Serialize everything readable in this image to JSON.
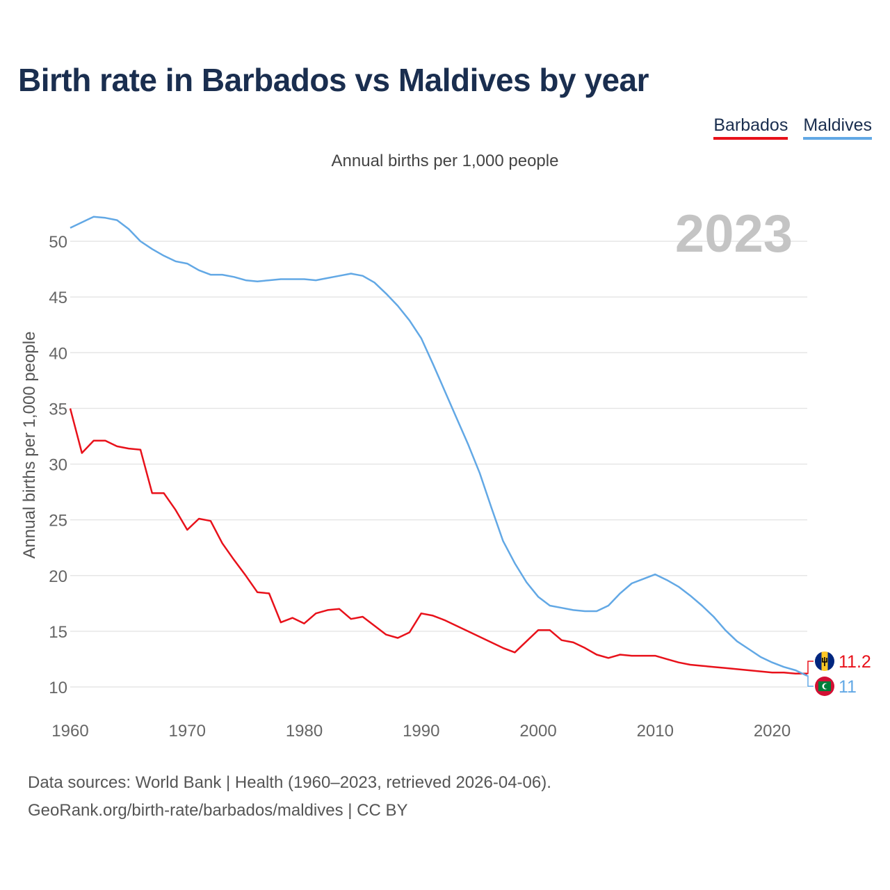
{
  "title": "Birth rate in Barbados vs Maldives by year",
  "legend": [
    {
      "label": "Barbados",
      "color": "#e8111a"
    },
    {
      "label": "Maldives",
      "color": "#62a8e5"
    }
  ],
  "subtitle": "Annual births per 1,000 people",
  "year_label": "2023",
  "source": {
    "line1": "Data sources: World Bank | Health (1960–2023, retrieved 2026-04-06).",
    "line2": "GeoRank.org/birth-rate/barbados/maldives | CC BY"
  },
  "chart_data": {
    "type": "line",
    "title": "Birth rate in Barbados vs Maldives by year",
    "ylabel": "Annual births per 1,000 people",
    "xlabel": "",
    "xlim": [
      1960,
      2023
    ],
    "ylim": [
      10,
      52.5
    ],
    "x_ticks": [
      1960,
      1970,
      1980,
      1990,
      2000,
      2010,
      2020
    ],
    "y_ticks": [
      10,
      15,
      20,
      25,
      30,
      35,
      40,
      45,
      50
    ],
    "grid": true,
    "x": [
      1960,
      1961,
      1962,
      1963,
      1964,
      1965,
      1966,
      1967,
      1968,
      1969,
      1970,
      1971,
      1972,
      1973,
      1974,
      1975,
      1976,
      1977,
      1978,
      1979,
      1980,
      1981,
      1982,
      1983,
      1984,
      1985,
      1986,
      1987,
      1988,
      1989,
      1990,
      1991,
      1992,
      1993,
      1994,
      1995,
      1996,
      1997,
      1998,
      1999,
      2000,
      2001,
      2002,
      2003,
      2004,
      2005,
      2006,
      2007,
      2008,
      2009,
      2010,
      2011,
      2012,
      2013,
      2014,
      2015,
      2016,
      2017,
      2018,
      2019,
      2020,
      2021,
      2022,
      2023
    ],
    "series": [
      {
        "name": "Barbados",
        "color": "#e8111a",
        "end_label": "11.2",
        "values": [
          35.0,
          31.0,
          32.1,
          32.1,
          31.6,
          31.4,
          31.3,
          27.4,
          27.4,
          25.9,
          24.1,
          25.1,
          24.9,
          22.9,
          21.4,
          20.0,
          18.5,
          18.4,
          15.8,
          16.2,
          15.7,
          16.6,
          16.9,
          17.0,
          16.1,
          16.3,
          15.5,
          14.7,
          14.4,
          14.9,
          16.6,
          16.4,
          16.0,
          15.5,
          15.0,
          14.5,
          14.0,
          13.5,
          13.1,
          14.1,
          15.1,
          15.1,
          14.2,
          14.0,
          13.5,
          12.9,
          12.6,
          12.9,
          12.8,
          12.8,
          12.8,
          12.5,
          12.2,
          12.0,
          11.9,
          11.8,
          11.7,
          11.6,
          11.5,
          11.4,
          11.3,
          11.3,
          11.2,
          11.2
        ]
      },
      {
        "name": "Maldives",
        "color": "#62a8e5",
        "end_label": "11",
        "values": [
          51.2,
          51.7,
          52.2,
          52.1,
          51.9,
          51.1,
          50.0,
          49.3,
          48.7,
          48.2,
          48.0,
          47.4,
          47.0,
          47.0,
          46.8,
          46.5,
          46.4,
          46.5,
          46.6,
          46.6,
          46.6,
          46.5,
          46.7,
          46.9,
          47.1,
          46.9,
          46.3,
          45.3,
          44.2,
          42.9,
          41.3,
          39.0,
          36.6,
          34.2,
          31.8,
          29.2,
          26.1,
          23.1,
          21.1,
          19.4,
          18.1,
          17.3,
          17.1,
          16.9,
          16.8,
          16.8,
          17.3,
          18.4,
          19.3,
          19.7,
          20.1,
          19.6,
          19.0,
          18.2,
          17.3,
          16.3,
          15.1,
          14.1,
          13.4,
          12.7,
          12.2,
          11.8,
          11.5,
          11.0
        ]
      }
    ]
  }
}
